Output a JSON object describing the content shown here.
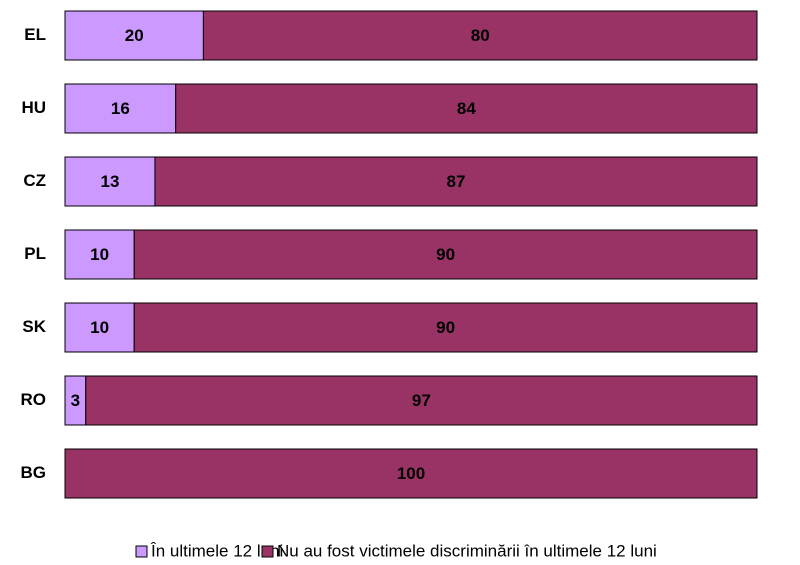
{
  "chart_data": {
    "type": "bar",
    "orientation": "horizontal",
    "stacked": true,
    "categories": [
      "EL",
      "HU",
      "CZ",
      "PL",
      "SK",
      "RO",
      "BG"
    ],
    "series": [
      {
        "name": "În ultimele 12 luni",
        "color": "#cc99ff",
        "values": [
          20,
          16,
          13,
          10,
          10,
          3,
          0
        ],
        "value_labels": [
          "20",
          "16",
          "13",
          "10",
          "10",
          "3",
          null
        ]
      },
      {
        "name": "Nu au fost victimele discriminării în ultimele 12 luni",
        "color": "#993366",
        "values": [
          80,
          84,
          87,
          90,
          90,
          97,
          100
        ]
      }
    ],
    "xlim": [
      0,
      100
    ],
    "legend": "bottom"
  }
}
